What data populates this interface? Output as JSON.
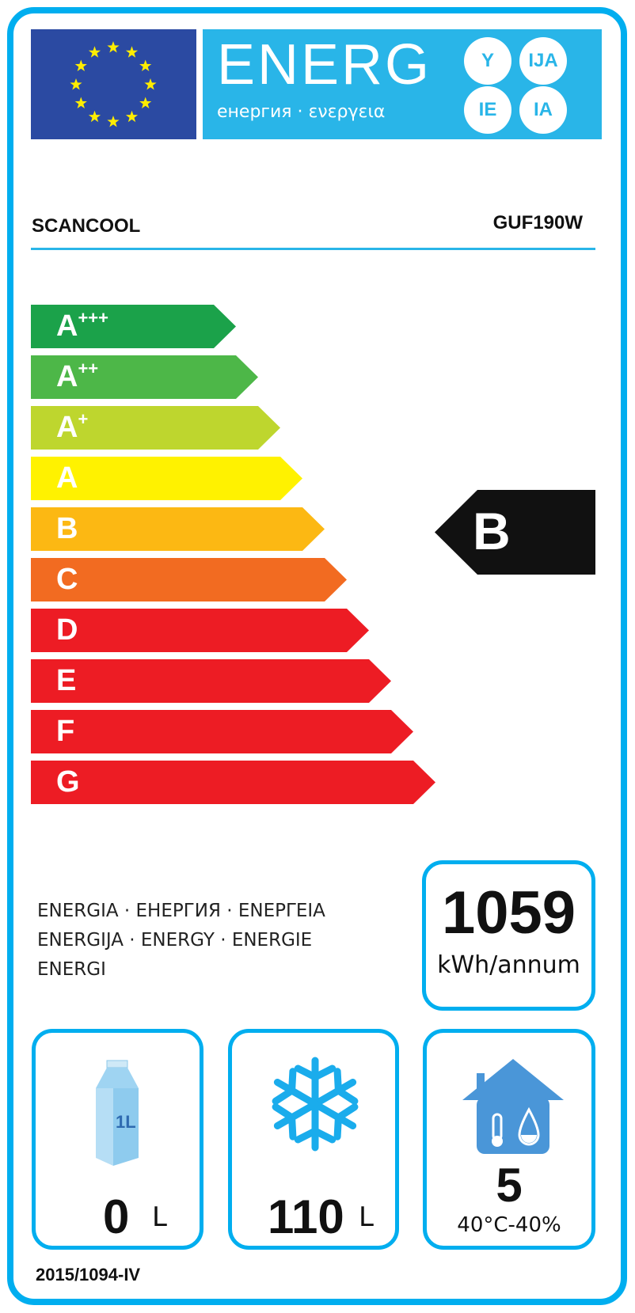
{
  "header": {
    "energy_word": "ENERG",
    "energy_subtitle": "енергия · ενεργεια",
    "suffixes": [
      "Y",
      "IJA",
      "IE",
      "IA"
    ]
  },
  "supplier": "SCANCOOL",
  "model": "GUF190W",
  "scale": [
    {
      "letter": "A",
      "plus": "+++",
      "color": "#1ba24a"
    },
    {
      "letter": "A",
      "plus": "++",
      "color": "#4db748"
    },
    {
      "letter": "A",
      "plus": "+",
      "color": "#bed62e"
    },
    {
      "letter": "A",
      "plus": "",
      "color": "#fff200"
    },
    {
      "letter": "B",
      "plus": "",
      "color": "#fcb813"
    },
    {
      "letter": "C",
      "plus": "",
      "color": "#f26b21"
    },
    {
      "letter": "D",
      "plus": "",
      "color": "#ed1c24"
    },
    {
      "letter": "E",
      "plus": "",
      "color": "#ed1c24"
    },
    {
      "letter": "F",
      "plus": "",
      "color": "#ed1c24"
    },
    {
      "letter": "G",
      "plus": "",
      "color": "#ed1c24"
    }
  ],
  "rating": {
    "class": "B",
    "color": "#111111"
  },
  "energy_label_text": [
    "ENERGIA · ЕНЕРГИЯ · ΕΝΕΡΓΕΙΑ",
    "ENERGIJA · ENERGY · ENERGIE",
    "ENERGI"
  ],
  "consumption": {
    "value": "1059",
    "unit": "kWh/annum"
  },
  "chilled": {
    "value": "0",
    "unit": "L",
    "icon": "milk-carton-icon",
    "icon_text": "1L"
  },
  "frozen": {
    "value": "110",
    "unit": "L",
    "icon": "snowflake-icon"
  },
  "climate": {
    "class": "5",
    "condition": "40°C-40%",
    "icon": "house-climate-icon"
  },
  "regulation": "2015/1094-IV",
  "colors": {
    "frame": "#00aeef",
    "banner": "#29b5e8",
    "flag": "#2b4aa2",
    "stars": "#ffed00"
  }
}
